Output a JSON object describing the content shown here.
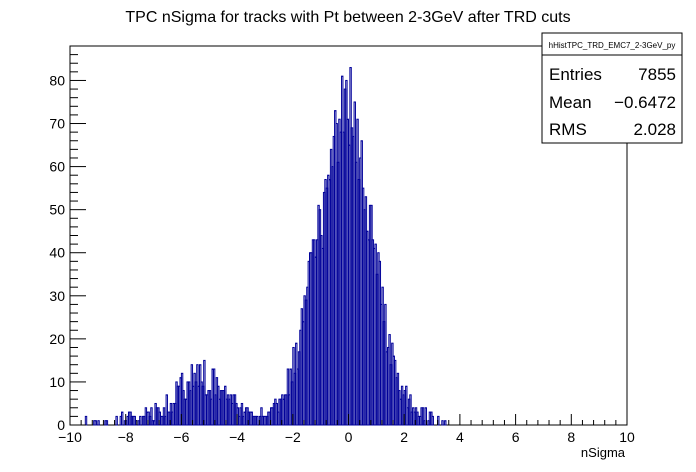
{
  "chart_data": {
    "type": "histogram",
    "title": "TPC nSigma for tracks with Pt between 2-3GeV after TRD cuts",
    "xlabel": "nSigma",
    "ylabel": "",
    "xlim": [
      -10,
      10
    ],
    "ylim": [
      0,
      88
    ],
    "bins": 400,
    "bin_width": 0.05,
    "line_color": "#000099",
    "x_ticks": [
      -10,
      -8,
      -6,
      -4,
      -2,
      0,
      2,
      4,
      6,
      8,
      10
    ],
    "x_tick_labels": [
      "−10",
      "−8",
      "−6",
      "−4",
      "−2",
      "0",
      "2",
      "4",
      "6",
      "8",
      "10"
    ],
    "y_ticks": [
      0,
      10,
      20,
      30,
      40,
      50,
      60,
      70,
      80
    ],
    "y_tick_labels": [
      "0",
      "10",
      "20",
      "30",
      "40",
      "50",
      "60",
      "70",
      "80"
    ],
    "profile": [
      [
        -9.6,
        0
      ],
      [
        -9.2,
        1
      ],
      [
        -8.8,
        0
      ],
      [
        -8.4,
        1
      ],
      [
        -8.0,
        2
      ],
      [
        -7.6,
        1
      ],
      [
        -7.2,
        2
      ],
      [
        -6.8,
        3
      ],
      [
        -6.4,
        5
      ],
      [
        -6.0,
        8
      ],
      [
        -5.7,
        10
      ],
      [
        -5.4,
        12
      ],
      [
        -5.2,
        11
      ],
      [
        -5.0,
        10
      ],
      [
        -4.7,
        9
      ],
      [
        -4.4,
        7
      ],
      [
        -4.2,
        6
      ],
      [
        -4.0,
        4
      ],
      [
        -3.7,
        3
      ],
      [
        -3.4,
        2
      ],
      [
        -3.0,
        2
      ],
      [
        -2.8,
        3
      ],
      [
        -2.6,
        4
      ],
      [
        -2.4,
        6
      ],
      [
        -2.2,
        9
      ],
      [
        -2.0,
        14
      ],
      [
        -1.8,
        19
      ],
      [
        -1.6,
        27
      ],
      [
        -1.4,
        34
      ],
      [
        -1.2,
        40
      ],
      [
        -1.0,
        47
      ],
      [
        -0.8,
        55
      ],
      [
        -0.6,
        62
      ],
      [
        -0.4,
        68
      ],
      [
        -0.2,
        72
      ],
      [
        0.0,
        74
      ],
      [
        0.2,
        70
      ],
      [
        0.4,
        64
      ],
      [
        0.6,
        56
      ],
      [
        0.8,
        46
      ],
      [
        1.0,
        37
      ],
      [
        1.2,
        28
      ],
      [
        1.4,
        21
      ],
      [
        1.6,
        15
      ],
      [
        1.8,
        10
      ],
      [
        2.0,
        7
      ],
      [
        2.2,
        5
      ],
      [
        2.4,
        4
      ],
      [
        2.6,
        3
      ],
      [
        2.8,
        2
      ],
      [
        3.0,
        2
      ],
      [
        3.2,
        1
      ],
      [
        3.4,
        1
      ],
      [
        3.6,
        0
      ],
      [
        4.0,
        0
      ],
      [
        5.0,
        0
      ],
      [
        6.0,
        0
      ],
      [
        7.0,
        0
      ],
      [
        8.0,
        0
      ],
      [
        9.0,
        0
      ]
    ]
  },
  "stats_box": {
    "name": "hHistTPC_TRD_EMC7_2-3GeV_py",
    "entries_label": "Entries",
    "entries_value": "7855",
    "mean_label": "Mean",
    "mean_value": "−0.6472",
    "rms_label": "RMS",
    "rms_value": "2.028"
  }
}
